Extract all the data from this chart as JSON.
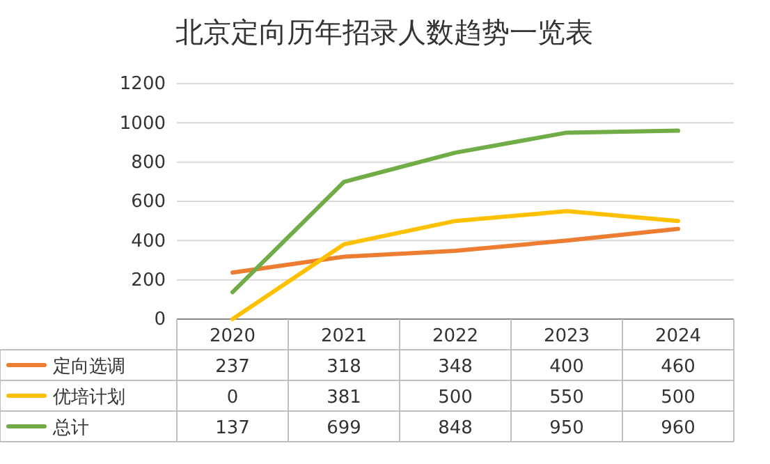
{
  "chart_data": {
    "type": "line",
    "title": "北京定向历年招录人数趋势一览表",
    "categories": [
      "2020",
      "2021",
      "2022",
      "2023",
      "2024"
    ],
    "series": [
      {
        "name": "定向选调",
        "color": "#ed7d31",
        "values": [
          237,
          318,
          348,
          400,
          460
        ]
      },
      {
        "name": "优培计划",
        "color": "#ffc000",
        "values": [
          0,
          381,
          500,
          550,
          500
        ]
      },
      {
        "name": "总计",
        "color": "#70ad47",
        "values": [
          137,
          699,
          848,
          950,
          960
        ]
      }
    ],
    "ylim": [
      0,
      1200
    ],
    "yticks": [
      0,
      200,
      400,
      600,
      800,
      1000,
      1200
    ],
    "grid": "y",
    "data_labels": true,
    "legend": "bottom",
    "marker": "none",
    "line_style": "solid"
  }
}
